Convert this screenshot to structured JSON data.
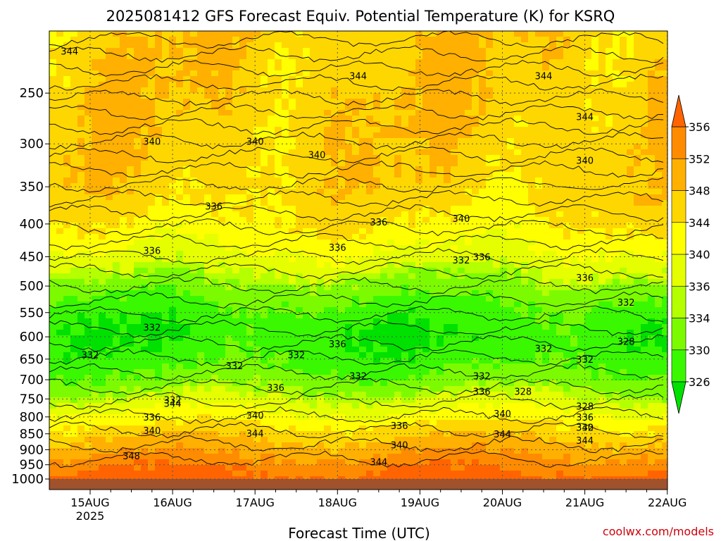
{
  "title": "2025081412 GFS Forecast Equiv. Potential Temperature (K) for KSRQ",
  "xlabel": "Forecast Time (UTC)",
  "watermark": "coolwx.com/models",
  "watermark_color": "#d0000a",
  "chart_data": {
    "type": "heatmap",
    "title": "2025081412 GFS Forecast Equiv. Potential Temperature (K) for KSRQ",
    "xlabel": "Forecast Time (UTC)",
    "ylabel": "",
    "x_ticks": [
      "15AUG",
      "16AUG",
      "17AUG",
      "18AUG",
      "19AUG",
      "20AUG",
      "21AUG",
      "22AUG"
    ],
    "x_year_label": "2025",
    "y_ticks": [
      250,
      300,
      350,
      400,
      450,
      500,
      550,
      600,
      650,
      700,
      750,
      800,
      850,
      900,
      950,
      1000
    ],
    "y_scale": "log-pressure, inverted",
    "ylim": [
      1013,
      200
    ],
    "colorbar": {
      "levels": [
        326,
        330,
        334,
        336,
        340,
        344,
        348,
        352,
        356
      ],
      "labels": [
        326,
        330,
        334,
        336,
        340,
        344,
        348,
        352,
        356
      ],
      "colors": [
        "#00e100",
        "#3af800",
        "#7cfb00",
        "#b4ff00",
        "#e6ff00",
        "#ffff00",
        "#ffd700",
        "#ffb000",
        "#ff8c00",
        "#ff6400"
      ]
    },
    "contour_labels": [
      {
        "time": "14AUG 18Z",
        "p": 215,
        "value": 344
      },
      {
        "time": "15AUG 18Z",
        "p": 297,
        "value": 340
      },
      {
        "time": "14AUG 12Z",
        "p": 330,
        "value": 340
      },
      {
        "time": "16AUG 12Z",
        "p": 375,
        "value": 336
      },
      {
        "time": "15AUG 18Z",
        "p": 440,
        "value": 336
      },
      {
        "time": "17AUG 00Z",
        "p": 297,
        "value": 340
      },
      {
        "time": "17AUG 18Z",
        "p": 312,
        "value": 340
      },
      {
        "time": "18AUG 06Z",
        "p": 235,
        "value": 344
      },
      {
        "time": "20AUG 12Z",
        "p": 235,
        "value": 344
      },
      {
        "time": "21AUG 00Z",
        "p": 272,
        "value": 344
      },
      {
        "time": "21AUG 00Z",
        "p": 318,
        "value": 340
      },
      {
        "time": "19AUG 12Z",
        "p": 392,
        "value": 340
      },
      {
        "time": "18AUG 12Z",
        "p": 397,
        "value": 336
      },
      {
        "time": "18AUG 00Z",
        "p": 435,
        "value": 336
      },
      {
        "time": "19AUG 12Z",
        "p": 455,
        "value": 332
      },
      {
        "time": "19AUG 18Z",
        "p": 450,
        "value": 336
      },
      {
        "time": "21AUG 00Z",
        "p": 485,
        "value": 336
      },
      {
        "time": "21AUG 12Z",
        "p": 530,
        "value": 332
      },
      {
        "time": "21AUG 12Z",
        "p": 610,
        "value": 328
      },
      {
        "time": "15AUG 18Z",
        "p": 580,
        "value": 332
      },
      {
        "time": "15AUG 00Z",
        "p": 640,
        "value": 332
      },
      {
        "time": "16AUG 18Z",
        "p": 665,
        "value": 332
      },
      {
        "time": "17AUG 12Z",
        "p": 640,
        "value": 332
      },
      {
        "time": "18AUG 00Z",
        "p": 615,
        "value": 336
      },
      {
        "time": "18AUG 06Z",
        "p": 690,
        "value": 332
      },
      {
        "time": "19AUG 18Z",
        "p": 690,
        "value": 332
      },
      {
        "time": "20AUG 12Z",
        "p": 625,
        "value": 332
      },
      {
        "time": "21AUG 00Z",
        "p": 650,
        "value": 332
      },
      {
        "time": "20AUG 06Z",
        "p": 730,
        "value": 328
      },
      {
        "time": "16AUG 00Z",
        "p": 752,
        "value": 332
      },
      {
        "time": "16AUG 00Z",
        "p": 762,
        "value": 344
      },
      {
        "time": "17AUG 06Z",
        "p": 720,
        "value": 336
      },
      {
        "time": "17AUG 00Z",
        "p": 795,
        "value": 340
      },
      {
        "time": "15AUG 18Z",
        "p": 800,
        "value": 336
      },
      {
        "time": "15AUG 18Z",
        "p": 840,
        "value": 340
      },
      {
        "time": "17AUG 00Z",
        "p": 848,
        "value": 344
      },
      {
        "time": "18AUG 18Z",
        "p": 825,
        "value": 336
      },
      {
        "time": "18AUG 18Z",
        "p": 885,
        "value": 340
      },
      {
        "time": "18AUG 12Z",
        "p": 940,
        "value": 344
      },
      {
        "time": "15AUG 12Z",
        "p": 920,
        "value": 348
      },
      {
        "time": "19AUG 18Z",
        "p": 730,
        "value": 336
      },
      {
        "time": "20AUG 00Z",
        "p": 790,
        "value": 340
      },
      {
        "time": "20AUG 00Z",
        "p": 850,
        "value": 344
      },
      {
        "time": "21AUG 00Z",
        "p": 770,
        "value": 328
      },
      {
        "time": "21AUG 00Z",
        "p": 800,
        "value": 336
      },
      {
        "time": "21AUG 00Z",
        "p": 830,
        "value": 332
      },
      {
        "time": "21AUG 00Z",
        "p": 830,
        "value": 340
      },
      {
        "time": "21AUG 00Z",
        "p": 870,
        "value": 344
      }
    ]
  }
}
